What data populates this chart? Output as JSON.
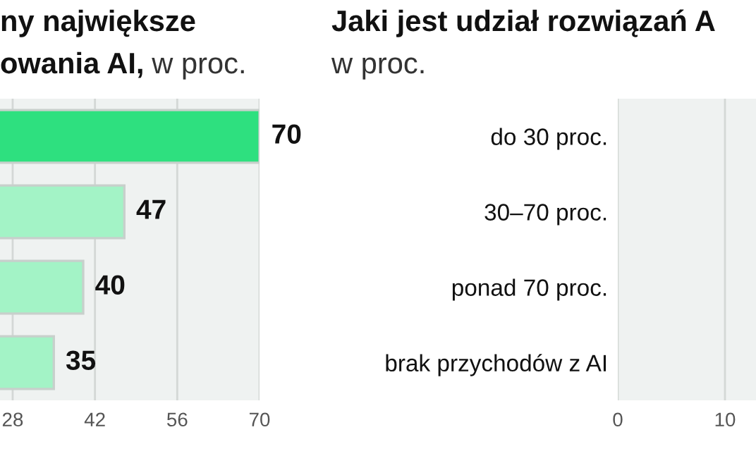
{
  "chart_data": [
    {
      "type": "bar",
      "orientation": "horizontal",
      "title": "ny największe\nowania AI,",
      "subtitle": "w proc.",
      "categories": [
        null,
        null,
        null,
        null
      ],
      "values": [
        70,
        47,
        40,
        35
      ],
      "colors": [
        "#2ee07f",
        "#a3f3c6",
        "#a3f3c6",
        "#a3f3c6"
      ],
      "xlim": [
        0,
        70
      ],
      "xticks": [
        28,
        42,
        56,
        70
      ],
      "grid": "x",
      "data_labels": true
    },
    {
      "type": "bar",
      "orientation": "horizontal",
      "title": "Jaki jest udział rozwiązań A",
      "subtitle": "w proc.",
      "categories": [
        "do 30 proc.",
        "30–70 proc.",
        "ponad 70 proc.",
        "brak przychodów z AI"
      ],
      "values": [
        null,
        null,
        null,
        null
      ],
      "colors": [
        "#2ee07f",
        "#a3f3c6",
        "#a3f3c6",
        "#a3f3c6"
      ],
      "xlim": [
        0,
        13
      ],
      "xticks": [
        0,
        10
      ],
      "grid": "x"
    }
  ]
}
